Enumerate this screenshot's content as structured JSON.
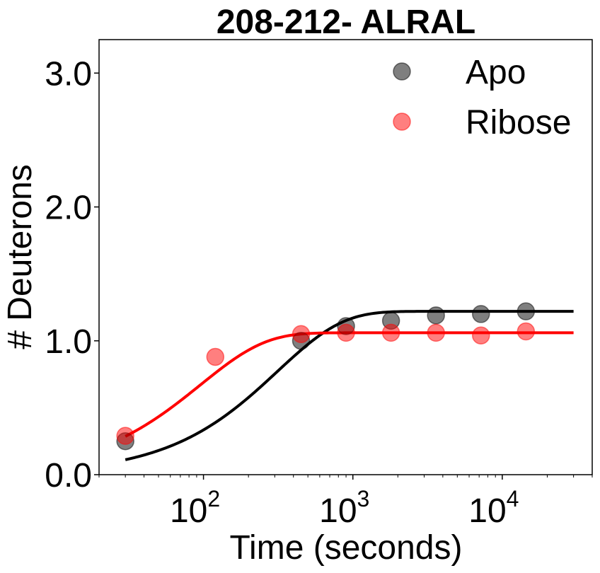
{
  "chart_data": {
    "type": "scatter",
    "title": "208-212- ALRAL",
    "xlabel": "Time (seconds)",
    "ylabel": "# Deuterons",
    "x_scale": "log",
    "xlim": [
      20,
      40000
    ],
    "ylim": [
      0,
      3.25
    ],
    "x_ticks": [
      {
        "value": 100,
        "base": "10",
        "exp": "2"
      },
      {
        "value": 1000,
        "base": "10",
        "exp": "3"
      },
      {
        "value": 10000,
        "base": "10",
        "exp": "4"
      }
    ],
    "y_ticks": [
      {
        "value": 0,
        "label": "0.0"
      },
      {
        "value": 1,
        "label": "1.0"
      },
      {
        "value": 2,
        "label": "2.0"
      },
      {
        "value": 3,
        "label": "3.0"
      }
    ],
    "grid": false,
    "legend_position": "top-right",
    "series": [
      {
        "name": "Apo",
        "marker_color": "#000000",
        "line_color": "#000000",
        "x": [
          30,
          450,
          900,
          1800,
          3600,
          7200,
          14400
        ],
        "y": [
          0.25,
          1.0,
          1.11,
          1.15,
          1.19,
          1.2,
          1.22
        ],
        "fit": {
          "a": 1.22,
          "k": 0.0032,
          "xmin": 30,
          "xmax": 30000
        }
      },
      {
        "name": "Ribose",
        "marker_color": "#ff0000",
        "line_color": "#ff0000",
        "x": [
          30,
          120,
          450,
          900,
          1800,
          3600,
          7200,
          14400
        ],
        "y": [
          0.29,
          0.88,
          1.05,
          1.06,
          1.06,
          1.06,
          1.04,
          1.07
        ],
        "fit": {
          "a": 1.06,
          "k": 0.0105,
          "xmin": 30,
          "xmax": 30000
        }
      }
    ]
  }
}
